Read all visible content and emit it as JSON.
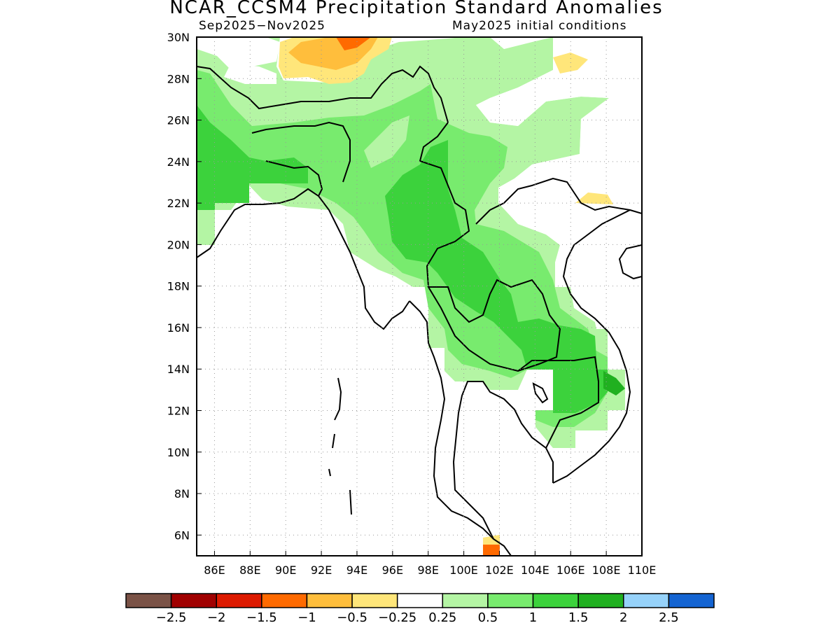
{
  "title": "NCAR_CCSM4 Precipitation Standard Anomalies",
  "subtitle_left": "Sep2025−Nov2025",
  "subtitle_right": "May2025 initial conditions",
  "map": {
    "lat_range": [
      5,
      30
    ],
    "lon_range": [
      85,
      110
    ],
    "lat_ticks": [
      {
        "value": 30,
        "label": "30N"
      },
      {
        "value": 28,
        "label": "28N"
      },
      {
        "value": 26,
        "label": "26N"
      },
      {
        "value": 24,
        "label": "24N"
      },
      {
        "value": 22,
        "label": "22N"
      },
      {
        "value": 20,
        "label": "20N"
      },
      {
        "value": 18,
        "label": "18N"
      },
      {
        "value": 16,
        "label": "16N"
      },
      {
        "value": 14,
        "label": "14N"
      },
      {
        "value": 12,
        "label": "12N"
      },
      {
        "value": 10,
        "label": "10N"
      },
      {
        "value": 8,
        "label": "8N"
      },
      {
        "value": 6,
        "label": "6N"
      }
    ],
    "lon_ticks": [
      {
        "value": 86,
        "label": "86E"
      },
      {
        "value": 88,
        "label": "88E"
      },
      {
        "value": 90,
        "label": "90E"
      },
      {
        "value": 92,
        "label": "92E"
      },
      {
        "value": 94,
        "label": "94E"
      },
      {
        "value": 96,
        "label": "96E"
      },
      {
        "value": 98,
        "label": "98E"
      },
      {
        "value": 100,
        "label": "100E"
      },
      {
        "value": 102,
        "label": "102E"
      },
      {
        "value": 104,
        "label": "104E"
      },
      {
        "value": 106,
        "label": "106E"
      },
      {
        "value": 108,
        "label": "108E"
      },
      {
        "value": 110,
        "label": "110E"
      }
    ],
    "grid": true
  },
  "legend": {
    "colors": [
      "#7a5246",
      "#a00000",
      "#dd1a00",
      "#ff6a00",
      "#ffbe3c",
      "#ffe67a",
      "#ffffff",
      "#b4f5a4",
      "#78eb6e",
      "#3cd23c",
      "#20b020",
      "#96d2fa",
      "#1464d2"
    ],
    "labels": [
      "−2.5",
      "−2",
      "−1.5",
      "−1",
      "−0.5",
      "−0.25",
      "0.25",
      "0.5",
      "1",
      "1.5",
      "2",
      "2.5"
    ]
  }
}
